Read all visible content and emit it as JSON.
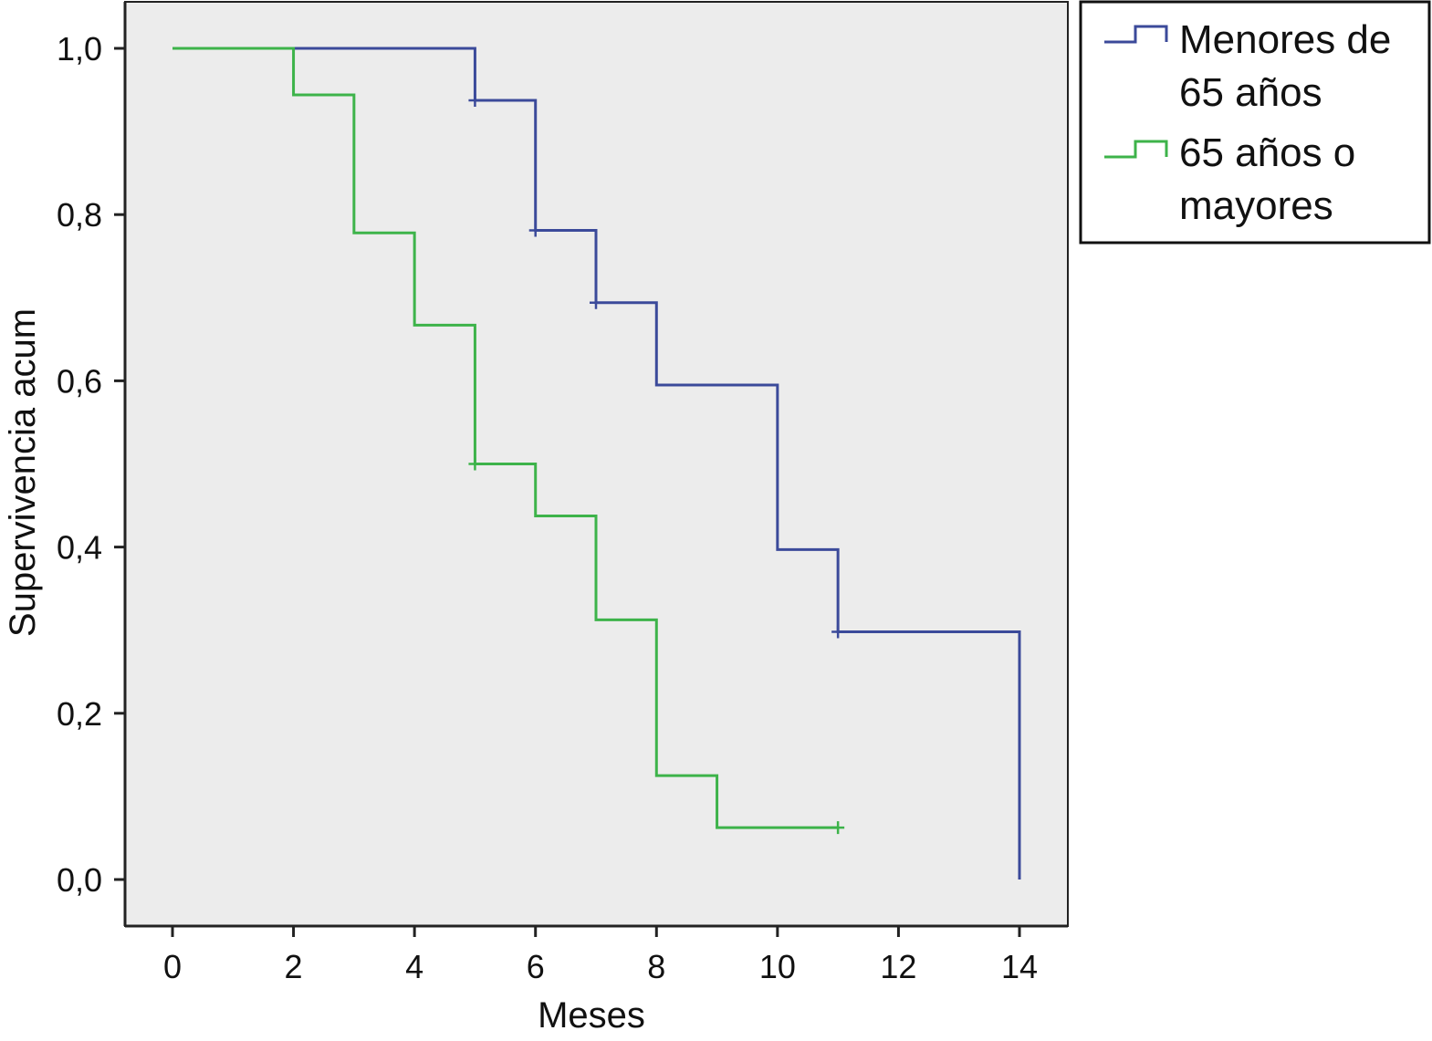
{
  "chart_data": {
    "type": "line",
    "subtype": "kaplan-meier-step",
    "title": "",
    "xlabel": "Meses",
    "ylabel": "Supervivencia acum",
    "xlim": [
      0,
      14
    ],
    "ylim": [
      0,
      1
    ],
    "xticks": [
      0,
      2,
      4,
      6,
      8,
      10,
      12,
      14
    ],
    "xtick_labels": [
      "0",
      "2",
      "4",
      "6",
      "8",
      "10",
      "12",
      "14"
    ],
    "yticks": [
      0,
      0.2,
      0.4,
      0.6,
      0.8,
      1.0
    ],
    "ytick_labels": [
      "0,0",
      "0,2",
      "0,4",
      "0,6",
      "0,8",
      "1,0"
    ],
    "grid": false,
    "background": "#ececec",
    "legend_position": "outside-top-right",
    "series": [
      {
        "name_lines": [
          "Menores de",
          "65 años"
        ],
        "color": "#3b4a9a",
        "steps": [
          {
            "x": 0,
            "y": 1.0
          },
          {
            "x": 5,
            "y": 0.9375
          },
          {
            "x": 6,
            "y": 0.781
          },
          {
            "x": 7,
            "y": 0.694
          },
          {
            "x": 8,
            "y": 0.595
          },
          {
            "x": 10,
            "y": 0.397
          },
          {
            "x": 11,
            "y": 0.298
          },
          {
            "x": 14,
            "y": 0.0
          }
        ],
        "end_x": 14,
        "censored": [
          {
            "x": 5,
            "y": 0.9375
          },
          {
            "x": 6,
            "y": 0.781
          },
          {
            "x": 7,
            "y": 0.694
          },
          {
            "x": 11,
            "y": 0.298
          }
        ]
      },
      {
        "name_lines": [
          "65 años o",
          "mayores"
        ],
        "color": "#3db34a",
        "steps": [
          {
            "x": 0,
            "y": 1.0
          },
          {
            "x": 2,
            "y": 0.944
          },
          {
            "x": 3,
            "y": 0.778
          },
          {
            "x": 4,
            "y": 0.667
          },
          {
            "x": 5,
            "y": 0.5
          },
          {
            "x": 6,
            "y": 0.4375
          },
          {
            "x": 7,
            "y": 0.3125
          },
          {
            "x": 8,
            "y": 0.125
          },
          {
            "x": 9,
            "y": 0.0625
          }
        ],
        "end_x": 11,
        "censored": [
          {
            "x": 5,
            "y": 0.5
          },
          {
            "x": 11,
            "y": 0.0625
          }
        ]
      }
    ]
  },
  "legend": {
    "entries": [
      {
        "line1": "Menores de",
        "line2": "65 años"
      },
      {
        "line1": "65 años o",
        "line2": "mayores"
      }
    ]
  }
}
